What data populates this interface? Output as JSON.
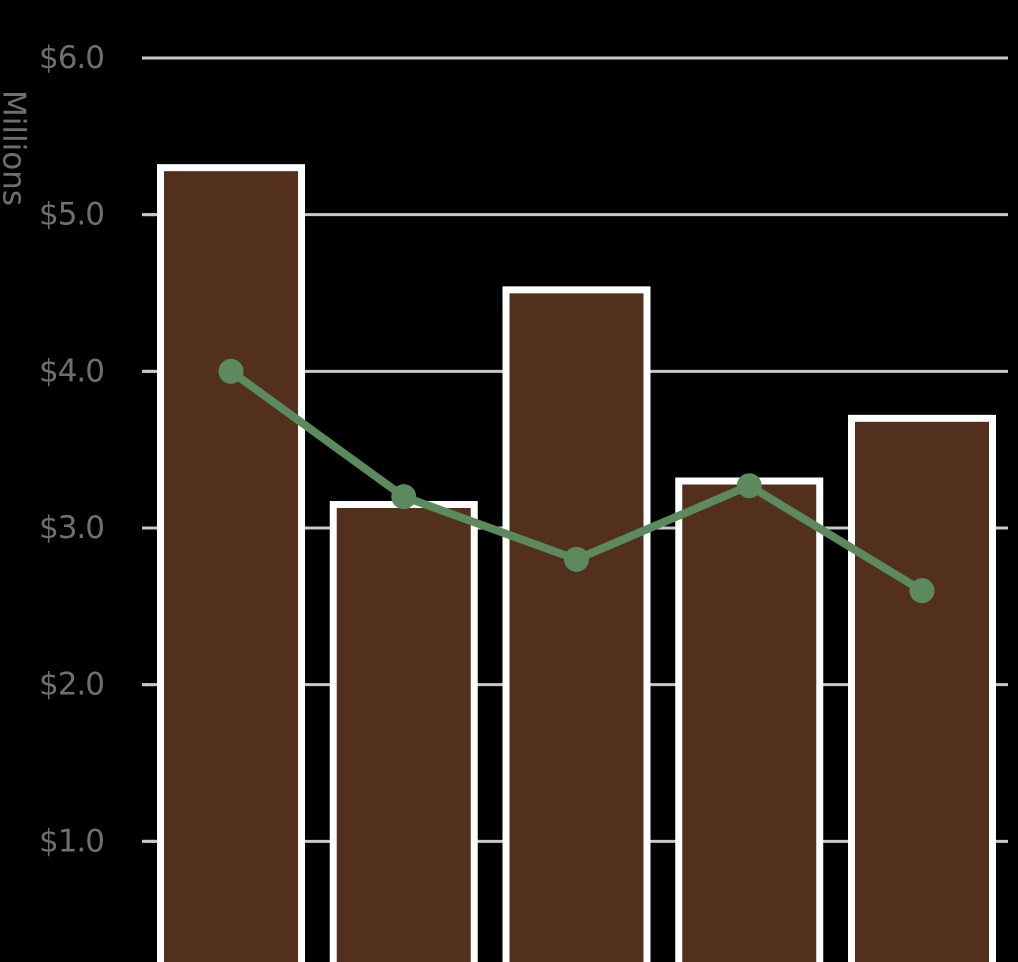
{
  "chart_data": {
    "type": "bar",
    "title": "",
    "xlabel": "",
    "ylabel": "Millions",
    "ylim": [
      0,
      6
    ],
    "yticks": [
      1,
      2,
      3,
      4,
      5,
      6
    ],
    "ytick_labels": [
      "$1.0",
      "$2.0",
      "$3.0",
      "$4.0",
      "$5.0",
      "$6.0"
    ],
    "grid": true,
    "legend": "none",
    "categories": [
      "",
      "",
      "",
      "",
      ""
    ],
    "series": [
      {
        "type": "bar",
        "values": [
          5.3,
          3.15,
          4.52,
          3.3,
          3.7
        ],
        "color": "#52301d",
        "edge_color": "#ffffff"
      },
      {
        "type": "line",
        "values": [
          4.0,
          3.2,
          2.8,
          3.27,
          2.6
        ],
        "color": "#5c8a5e",
        "marker": "circle"
      }
    ]
  }
}
